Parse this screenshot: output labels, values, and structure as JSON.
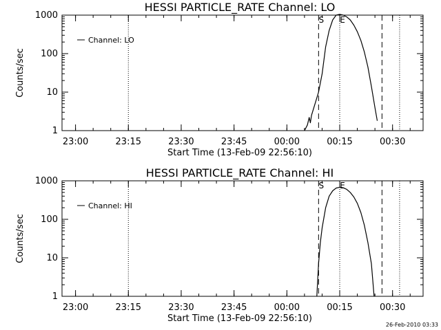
{
  "footer": {
    "timestamp": "26-Feb-2010 03:33"
  },
  "chart_data": [
    {
      "type": "line",
      "title": "HESSI PARTICLE_RATE Channel: LO",
      "xlabel": "Start Time (13-Feb-09 22:56:10)",
      "ylabel": "Counts/sec",
      "y_scale": "log",
      "ylim": [
        1,
        1000
      ],
      "xlim": [
        "22:56:10",
        "00:38:40"
      ],
      "x_ticks": [
        "23:00",
        "23:15",
        "23:30",
        "23:45",
        "00:00",
        "00:15",
        "00:30"
      ],
      "y_ticks": [
        "1",
        "10",
        "100",
        "1000"
      ],
      "legend": {
        "label": "Channel: LO",
        "position": "top-left"
      },
      "markers": {
        "S": "00:09",
        "E": "00:15"
      },
      "dotted_lines": [
        "23:15",
        "00:15",
        "00:32"
      ],
      "dashed_lines": [
        "00:09",
        "00:27"
      ],
      "series": [
        {
          "name": "Channel: LO",
          "points": [
            [
              "00:05:00",
              1
            ],
            [
              "00:05:50",
              1.4
            ],
            [
              "00:06:20",
              2.2
            ],
            [
              "00:06:40",
              1.6
            ],
            [
              "00:07:00",
              2.5
            ],
            [
              "00:08:00",
              5
            ],
            [
              "00:09:00",
              10
            ],
            [
              "00:10:00",
              30
            ],
            [
              "00:11:00",
              150
            ],
            [
              "00:12:00",
              400
            ],
            [
              "00:13:00",
              750
            ],
            [
              "00:14:00",
              1000
            ],
            [
              "00:15:00",
              1050
            ],
            [
              "00:16:00",
              1000
            ],
            [
              "00:17:00",
              900
            ],
            [
              "00:18:00",
              750
            ],
            [
              "00:19:00",
              550
            ],
            [
              "00:20:00",
              370
            ],
            [
              "00:21:00",
              220
            ],
            [
              "00:22:00",
              110
            ],
            [
              "00:23:00",
              45
            ],
            [
              "00:24:00",
              14
            ],
            [
              "00:25:00",
              4
            ],
            [
              "00:25:40",
              1.8
            ]
          ]
        }
      ]
    },
    {
      "type": "line",
      "title": "HESSI PARTICLE_RATE Channel: HI",
      "xlabel": "Start Time (13-Feb-09 22:56:10)",
      "ylabel": "Counts/sec",
      "y_scale": "log",
      "ylim": [
        1,
        1000
      ],
      "xlim": [
        "22:56:10",
        "00:38:40"
      ],
      "x_ticks": [
        "23:00",
        "23:15",
        "23:30",
        "23:45",
        "00:00",
        "00:15",
        "00:30"
      ],
      "y_ticks": [
        "1",
        "10",
        "100",
        "1000"
      ],
      "legend": {
        "label": "Channel: HI",
        "position": "top-left"
      },
      "markers": {
        "S": "00:09",
        "E": "00:15"
      },
      "dotted_lines": [
        "23:15",
        "00:15",
        "00:32"
      ],
      "dashed_lines": [
        "00:09",
        "00:27"
      ],
      "series": [
        {
          "name": "Channel: HI",
          "points": [
            [
              "00:08:30",
              1
            ],
            [
              "00:09:00",
              7
            ],
            [
              "00:09:30",
              25
            ],
            [
              "00:10:00",
              60
            ],
            [
              "00:11:00",
              200
            ],
            [
              "00:12:00",
              400
            ],
            [
              "00:13:00",
              550
            ],
            [
              "00:14:00",
              650
            ],
            [
              "00:15:00",
              680
            ],
            [
              "00:16:00",
              660
            ],
            [
              "00:17:00",
              600
            ],
            [
              "00:18:00",
              500
            ],
            [
              "00:19:00",
              380
            ],
            [
              "00:20:00",
              260
            ],
            [
              "00:21:00",
              150
            ],
            [
              "00:22:00",
              70
            ],
            [
              "00:23:00",
              25
            ],
            [
              "00:24:00",
              7
            ],
            [
              "00:24:45",
              1
            ]
          ]
        }
      ]
    }
  ]
}
